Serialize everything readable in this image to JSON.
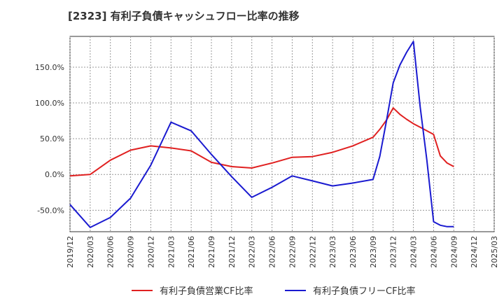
{
  "title": "[2323]  有利子負債キャッシュフロー比率の推移",
  "chart_data": {
    "type": "line",
    "title": "[2323]  有利子負債キャッシュフロー比率の推移",
    "xlabel": "",
    "ylabel": "",
    "x_ticks": [
      "2019/12",
      "2020/03",
      "2020/06",
      "2020/09",
      "2020/12",
      "2021/03",
      "2021/06",
      "2021/09",
      "2021/12",
      "2022/03",
      "2022/06",
      "2022/09",
      "2022/12",
      "2023/03",
      "2023/06",
      "2023/09",
      "2023/12",
      "2024/03",
      "2024/06",
      "2024/09",
      "2024/12",
      "2025/03"
    ],
    "y_ticks": [
      -50,
      0,
      50,
      100,
      150
    ],
    "y_tick_labels": [
      "-50.0%",
      "0.0%",
      "50.0%",
      "100.0%",
      "150.0%"
    ],
    "ylim": [
      -80,
      193
    ],
    "grid": true,
    "legend_position": "bottom",
    "series": [
      {
        "name": "有利子負債営業CF比率",
        "color": "#e02020",
        "x": [
          "2019/12",
          "2020/03",
          "2020/06",
          "2020/09",
          "2020/12",
          "2021/03",
          "2021/06",
          "2021/09",
          "2021/12",
          "2022/03",
          "2022/06",
          "2022/09",
          "2022/12",
          "2023/03",
          "2023/06",
          "2023/09",
          "2023/10",
          "2023/11",
          "2023/12",
          "2024/01",
          "2024/02",
          "2024/03",
          "2024/04",
          "2024/05",
          "2024/06",
          "2024/07",
          "2024/08",
          "2024/09"
        ],
        "y": [
          -2,
          0,
          20,
          34,
          40,
          37,
          33,
          17,
          11,
          9,
          16,
          24,
          25,
          31,
          40,
          52,
          63,
          76,
          93,
          84,
          77,
          71,
          66,
          61,
          56,
          26,
          16,
          11
        ]
      },
      {
        "name": "有利子負債フリーCF比率",
        "color": "#1a1ad0",
        "x": [
          "2019/12",
          "2020/03",
          "2020/06",
          "2020/09",
          "2020/12",
          "2021/03",
          "2021/06",
          "2021/09",
          "2021/12",
          "2022/03",
          "2022/06",
          "2022/09",
          "2022/12",
          "2023/03",
          "2023/06",
          "2023/09",
          "2023/10",
          "2023/11",
          "2023/12",
          "2024/01",
          "2024/02",
          "2024/03",
          "2024/04",
          "2024/05",
          "2024/06",
          "2024/07",
          "2024/08",
          "2024/09"
        ],
        "y": [
          -42,
          -74,
          -60,
          -33,
          13,
          73,
          61,
          28,
          -3,
          -32,
          -18,
          -2,
          -9,
          -16,
          -12,
          -7,
          25,
          75,
          128,
          153,
          171,
          186,
          95,
          20,
          -66,
          -71,
          -73,
          -73
        ]
      }
    ]
  }
}
